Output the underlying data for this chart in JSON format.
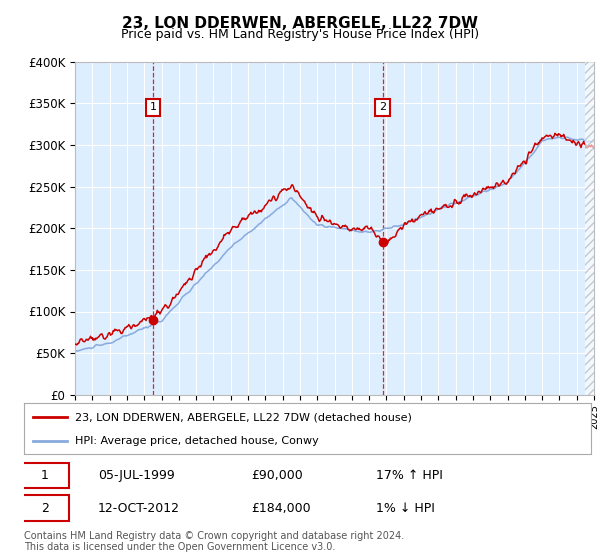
{
  "title": "23, LON DDERWEN, ABERGELE, LL22 7DW",
  "subtitle": "Price paid vs. HM Land Registry's House Price Index (HPI)",
  "ylim": [
    0,
    400000
  ],
  "yticks": [
    0,
    50000,
    100000,
    150000,
    200000,
    250000,
    300000,
    350000,
    400000
  ],
  "ytick_labels": [
    "£0",
    "£50K",
    "£100K",
    "£150K",
    "£200K",
    "£250K",
    "£300K",
    "£350K",
    "£400K"
  ],
  "background_color": "#ddeeff",
  "grid_color": "#ffffff",
  "hpi_line_color": "#88aadd",
  "price_line_color": "#cc0000",
  "sale1_x": 1999.51,
  "sale1_y": 90000,
  "sale2_x": 2012.78,
  "sale2_y": 184000,
  "legend_price_label": "23, LON DDERWEN, ABERGELE, LL22 7DW (detached house)",
  "legend_hpi_label": "HPI: Average price, detached house, Conwy",
  "annotation1_date": "05-JUL-1999",
  "annotation1_price": "£90,000",
  "annotation1_hpi": "17% ↑ HPI",
  "annotation2_date": "12-OCT-2012",
  "annotation2_price": "£184,000",
  "annotation2_hpi": "1% ↓ HPI",
  "footer": "Contains HM Land Registry data © Crown copyright and database right 2024.\nThis data is licensed under the Open Government Licence v3.0.",
  "xmin": 1995,
  "xmax": 2025
}
